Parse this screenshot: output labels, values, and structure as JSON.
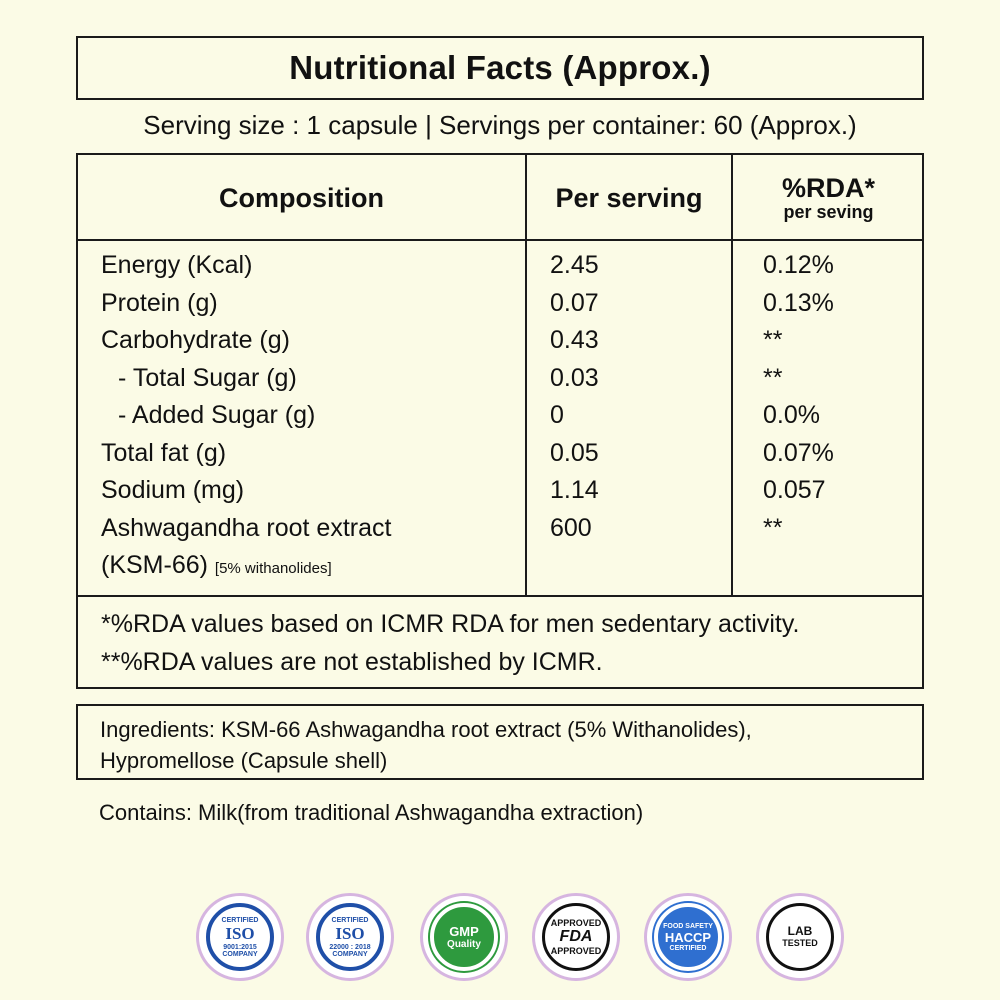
{
  "title": "Nutritional Facts (Approx.)",
  "serving": "Serving size : 1 capsule | Servings per container: 60 (Approx.)",
  "table": {
    "headers": {
      "composition": "Composition",
      "per_serving": "Per serving",
      "rda": "%RDA*",
      "rda_sub": "per seving"
    },
    "rows": [
      {
        "name": "Energy (Kcal)",
        "value": "2.45",
        "rda": "0.12%"
      },
      {
        "name": "Protein (g)",
        "value": "0.07",
        "rda": "0.13%"
      },
      {
        "name": "Carbohydrate (g)",
        "value": "0.43",
        "rda": "**"
      },
      {
        "name": "- Total Sugar (g)",
        "value": "0.03",
        "rda": "**"
      },
      {
        "name": "- Added Sugar (g)",
        "value": "0",
        "rda": "0.0%"
      },
      {
        "name": "Total fat (g)",
        "value": "0.05",
        "rda": "0.07%"
      },
      {
        "name": "Sodium (mg)",
        "value": "1.14",
        "rda": "0.057"
      },
      {
        "name": "Ashwagandha root  extract",
        "value": "600",
        "rda": "**"
      }
    ],
    "last_row_line2": "(KSM-66)",
    "last_row_line2_small": "[5% withanolides]",
    "notes": [
      "*%RDA values based on ICMR RDA for men sedentary activity.",
      "**%RDA values are not established by ICMR."
    ]
  },
  "ingredients": {
    "line1": "Ingredients: KSM-66 Ashwagandha root extract (5% Withanolides),",
    "line2": "Hypromellose (Capsule shell)"
  },
  "contains": "Contains: Milk(from traditional Ashwagandha extraction)",
  "badges": {
    "iso1": {
      "top": "CERTIFIED",
      "mark": "ISO",
      "num": "9001:2015",
      "bottom": "COMPANY"
    },
    "iso2": {
      "top": "CERTIFIED",
      "mark": "ISO",
      "num": "22000 : 2018",
      "bottom": "COMPANY"
    },
    "gmp": {
      "line1": "GMP",
      "line2": "Quality"
    },
    "fda": {
      "top": "APPROVED",
      "mark": "FDA",
      "bottom": "APPROVED"
    },
    "haccp": {
      "top": "FOOD SAFETY",
      "mark": "HACCP",
      "bottom": "CERTIFIED"
    },
    "lab": {
      "line1": "LAB",
      "line2": "TESTED"
    }
  },
  "colors": {
    "background": "#fbfbe6",
    "border": "#1a1a1a",
    "iso_blue": "#1f4fa8",
    "gmp_green": "#2e9a3e",
    "haccp_blue": "#2f6fd0"
  }
}
